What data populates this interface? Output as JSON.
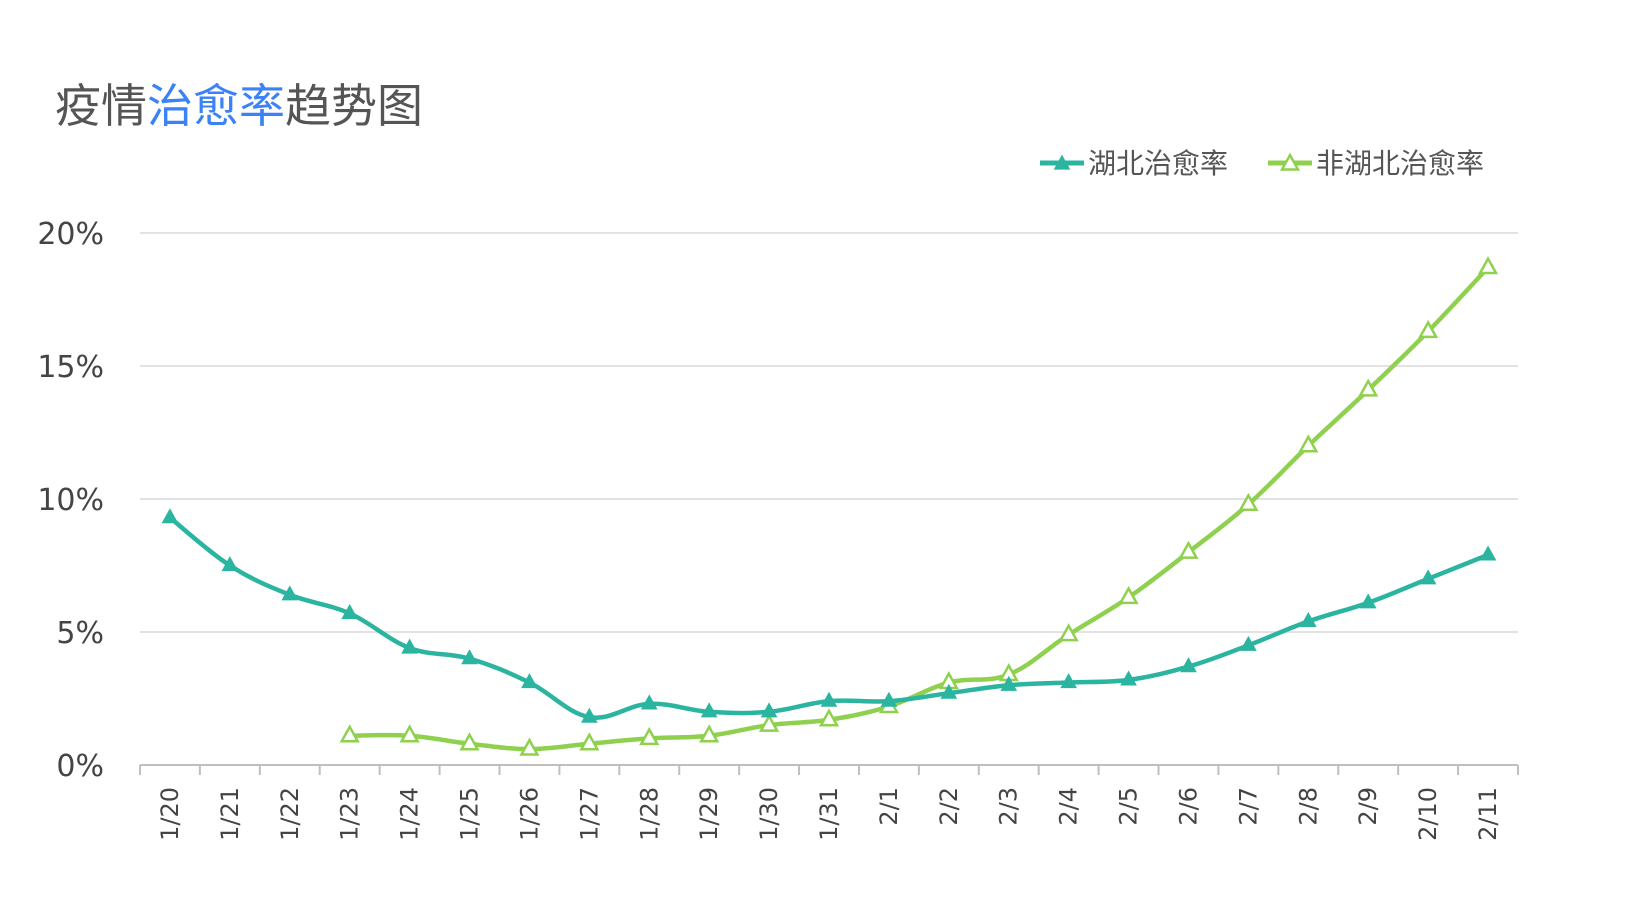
{
  "title": {
    "prefix": "疫情",
    "accent": "治愈率",
    "suffix": "趋势图"
  },
  "colors": {
    "hubei": "#2bb5a0",
    "non_hubei": "#8fd14f",
    "title_accent": "#3b82f6",
    "grid": "#d9d9d9",
    "axis": "#bfbfbf",
    "text": "#555555"
  },
  "chart_data": {
    "type": "line",
    "title": "疫情治愈率趋势图",
    "xlabel": "",
    "ylabel": "",
    "ylim": [
      0,
      20
    ],
    "yticks": [
      0,
      5,
      10,
      15,
      20
    ],
    "ytick_labels": [
      "0%",
      "5%",
      "10%",
      "15%",
      "20%"
    ],
    "grid": "horizontal",
    "legend_position": "top-right",
    "categories": [
      "1/20",
      "1/21",
      "1/22",
      "1/23",
      "1/24",
      "1/25",
      "1/26",
      "1/27",
      "1/28",
      "1/29",
      "1/30",
      "1/31",
      "2/1",
      "2/2",
      "2/3",
      "2/4",
      "2/5",
      "2/6",
      "2/7",
      "2/8",
      "2/9",
      "2/10",
      "2/11"
    ],
    "series": [
      {
        "name": "湖北治愈率",
        "marker": "filled-triangle",
        "values": [
          9.3,
          7.5,
          6.4,
          5.7,
          4.4,
          4.0,
          3.1,
          1.8,
          2.3,
          2.0,
          2.0,
          2.4,
          2.4,
          2.7,
          3.0,
          3.1,
          3.2,
          3.7,
          4.5,
          5.4,
          6.1,
          7.0,
          7.9
        ]
      },
      {
        "name": "非湖北治愈率",
        "marker": "hollow-triangle",
        "values": [
          null,
          null,
          null,
          1.1,
          1.1,
          0.8,
          0.6,
          0.8,
          1.0,
          1.1,
          1.5,
          1.7,
          2.2,
          3.1,
          3.4,
          4.9,
          6.3,
          8.0,
          9.8,
          12.0,
          14.1,
          16.3,
          18.7
        ]
      }
    ]
  }
}
